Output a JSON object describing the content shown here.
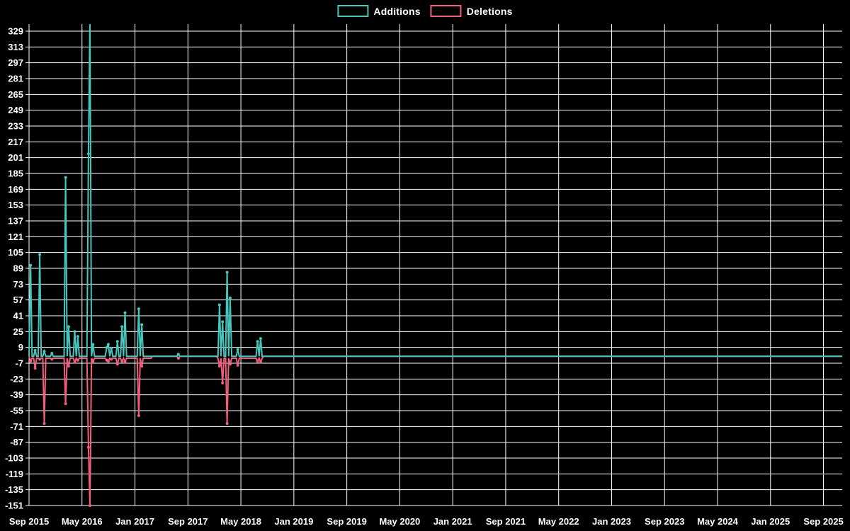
{
  "legend": {
    "items": [
      {
        "label": "Additions",
        "color": "#46c6bd"
      },
      {
        "label": "Deletions",
        "color": "#f15f7d"
      }
    ]
  },
  "chart_data": {
    "type": "line",
    "title": "",
    "xlabel": "",
    "ylabel": "",
    "background_color": "#000000",
    "grid_color": "#ffffff",
    "legend_position": "top-center",
    "grid": true,
    "x_axis": {
      "tick_labels": [
        "Sep 2015",
        "May 2016",
        "Jan 2017",
        "Sep 2017",
        "May 2018",
        "Jan 2019",
        "Sep 2019",
        "May 2020",
        "Jan 2021",
        "Sep 2021",
        "May 2022",
        "Jan 2023",
        "Sep 2023",
        "May 2024",
        "Jan 2025",
        "Sep 2025"
      ],
      "months_per_gridline": 8,
      "range_start": "2015-09-01",
      "range_end": "2025-12-01"
    },
    "y_axis": {
      "tick_labels": [
        "329",
        "313",
        "297",
        "281",
        "265",
        "249",
        "233",
        "217",
        "201",
        "185",
        "169",
        "153",
        "137",
        "121",
        "105",
        "89",
        "73",
        "57",
        "41",
        "25",
        "9",
        "-7",
        "-23",
        "-39",
        "-55",
        "-71",
        "-87",
        "-103",
        "-119",
        "-135",
        "-151"
      ],
      "tick_max": 329,
      "tick_min": -151,
      "tick_step": -16,
      "ylim": [
        -154,
        335
      ]
    },
    "series": [
      {
        "name": "Additions",
        "color": "#46c6bd",
        "baseline_value": 0
      },
      {
        "name": "Deletions",
        "color": "#f15f7d",
        "baseline_value": 0
      }
    ],
    "sampling": "weekly",
    "weeks_total": 535,
    "deletions_baseline_active_ranges_weeks": [
      [
        1,
        80
      ],
      [
        124,
        153
      ]
    ],
    "deletions_baseline_active_value": -2,
    "weekly_events": [
      {
        "week": 1,
        "date": "2015-09-08",
        "additions": 92,
        "deletions": -5
      },
      {
        "week": 4,
        "date": "2015-09-29",
        "additions": 6,
        "deletions": -12
      },
      {
        "week": 7,
        "date": "2015-10-20",
        "additions": 103,
        "deletions": -3
      },
      {
        "week": 10,
        "date": "2015-11-10",
        "additions": 5,
        "deletions": -68
      },
      {
        "week": 15,
        "date": "2015-12-15",
        "additions": 3,
        "deletions": -3
      },
      {
        "week": 24,
        "date": "2016-02-16",
        "additions": 181,
        "deletions": -48
      },
      {
        "week": 26,
        "date": "2016-03-01",
        "additions": 30,
        "deletions": -10
      },
      {
        "week": 30,
        "date": "2016-03-29",
        "additions": 25,
        "deletions": -6
      },
      {
        "week": 32,
        "date": "2016-04-12",
        "additions": 20,
        "deletions": -4
      },
      {
        "week": 39,
        "date": "2016-05-31",
        "additions": 205,
        "deletions": -92
      },
      {
        "week": 40,
        "date": "2016-06-07",
        "additions": 340,
        "deletions": -151
      },
      {
        "week": 42,
        "date": "2016-06-21",
        "additions": 12,
        "deletions": -5
      },
      {
        "week": 51,
        "date": "2016-08-23",
        "additions": 9,
        "deletions": -4
      },
      {
        "week": 52,
        "date": "2016-08-30",
        "additions": 12,
        "deletions": -5
      },
      {
        "week": 54,
        "date": "2016-09-13",
        "additions": 8,
        "deletions": -3
      },
      {
        "week": 58,
        "date": "2016-10-11",
        "additions": 15,
        "deletions": -8
      },
      {
        "week": 61,
        "date": "2016-11-01",
        "additions": 30,
        "deletions": -5
      },
      {
        "week": 63,
        "date": "2016-11-15",
        "additions": 44,
        "deletions": -6
      },
      {
        "week": 72,
        "date": "2017-01-17",
        "additions": 48,
        "deletions": -60
      },
      {
        "week": 74,
        "date": "2017-01-31",
        "additions": 32,
        "deletions": -10
      },
      {
        "week": 98,
        "date": "2017-07-18",
        "additions": 2,
        "deletions": -2
      },
      {
        "week": 125,
        "date": "2018-01-23",
        "additions": 52,
        "deletions": -10
      },
      {
        "week": 127,
        "date": "2018-02-06",
        "additions": 35,
        "deletions": -27
      },
      {
        "week": 130,
        "date": "2018-02-27",
        "additions": 85,
        "deletions": -68
      },
      {
        "week": 132,
        "date": "2018-03-13",
        "additions": 59,
        "deletions": -8
      },
      {
        "week": 137,
        "date": "2018-04-17",
        "additions": 7,
        "deletions": -9
      },
      {
        "week": 150,
        "date": "2018-07-17",
        "additions": 15,
        "deletions": -5
      },
      {
        "week": 152,
        "date": "2018-07-31",
        "additions": 18,
        "deletions": -6
      }
    ]
  }
}
